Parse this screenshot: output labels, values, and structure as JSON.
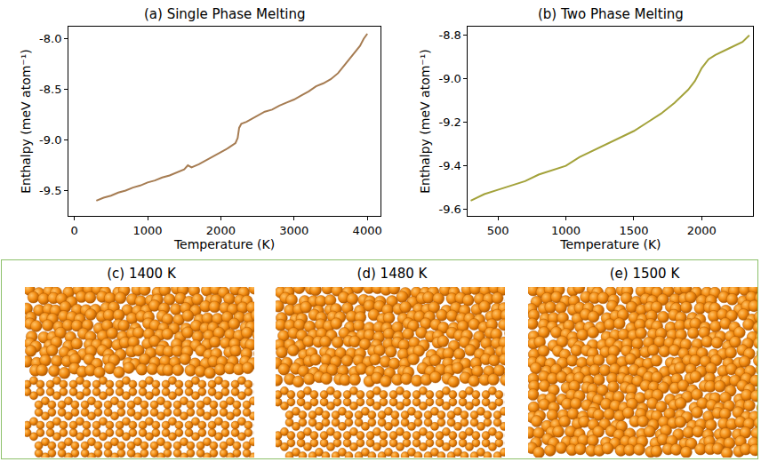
{
  "chart_data": [
    {
      "type": "line",
      "title": "(a) Single Phase Melting",
      "xlabel": "Temperature (K)",
      "ylabel": "Enthalpy (meV atom⁻¹)",
      "color": "#a67c52",
      "x": [
        300,
        400,
        500,
        600,
        700,
        800,
        900,
        1000,
        1100,
        1200,
        1300,
        1400,
        1500,
        1550,
        1600,
        1700,
        1800,
        1900,
        2000,
        2100,
        2200,
        2230,
        2250,
        2280,
        2350,
        2450,
        2600,
        2700,
        2800,
        2900,
        3000,
        3100,
        3200,
        3300,
        3400,
        3500,
        3600,
        3700,
        3800,
        3900,
        3950,
        4000
      ],
      "values": [
        -9.6,
        -9.57,
        -9.55,
        -9.52,
        -9.5,
        -9.47,
        -9.45,
        -9.42,
        -9.4,
        -9.37,
        -9.35,
        -9.32,
        -9.29,
        -9.25,
        -9.27,
        -9.24,
        -9.2,
        -9.16,
        -9.12,
        -9.08,
        -9.03,
        -8.98,
        -8.88,
        -8.84,
        -8.82,
        -8.78,
        -8.72,
        -8.7,
        -8.66,
        -8.63,
        -8.6,
        -8.56,
        -8.52,
        -8.47,
        -8.44,
        -8.4,
        -8.34,
        -8.25,
        -8.16,
        -8.07,
        -8.0,
        -7.95
      ],
      "xlim": [
        -80,
        4180
      ],
      "ylim": [
        -9.75,
        -7.88
      ],
      "xticks": [
        0,
        1000,
        2000,
        3000,
        4000
      ],
      "yticks": [
        -9.5,
        {
          "value": -9,
          "label": "-9.0"
        },
        -8.5,
        {
          "value": -8,
          "label": "-8.0"
        }
      ]
    },
    {
      "type": "line",
      "title": "(b) Two Phase Melting",
      "xlabel": "Temperature (K)",
      "ylabel": "Enthalpy (meV atom⁻¹)",
      "color": "#a3a23a",
      "x": [
        300,
        400,
        500,
        600,
        700,
        800,
        900,
        1000,
        1100,
        1200,
        1300,
        1400,
        1500,
        1600,
        1700,
        1800,
        1850,
        1900,
        1950,
        2000,
        2050,
        2100,
        2200,
        2300,
        2350
      ],
      "values": [
        -9.56,
        -9.53,
        -9.51,
        -9.49,
        -9.47,
        -9.44,
        -9.42,
        -9.4,
        -9.36,
        -9.33,
        -9.3,
        -9.27,
        -9.24,
        -9.2,
        -9.16,
        -9.11,
        -9.08,
        -9.05,
        -9.01,
        -8.95,
        -8.91,
        -8.89,
        -8.86,
        -8.83,
        -8.8
      ],
      "xlim": [
        280,
        2380
      ],
      "ylim": [
        -9.63,
        -8.76
      ],
      "xticks": [
        500,
        1000,
        1500,
        2000
      ],
      "yticks": [
        -9.6,
        -9.4,
        -9.2,
        {
          "value": -9,
          "label": "-9.0"
        },
        -8.8
      ]
    }
  ],
  "snapshots": [
    {
      "title": "(c) 1400 K"
    },
    {
      "title": "(d) 1480 K"
    },
    {
      "title": "(e) 1500 K"
    }
  ]
}
